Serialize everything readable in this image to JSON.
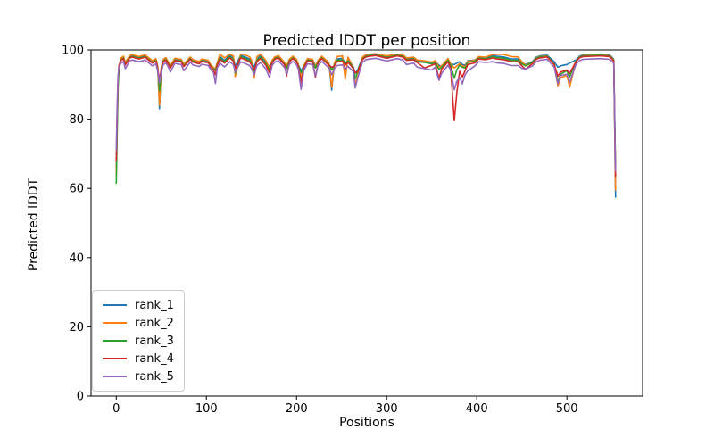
{
  "figure": {
    "background": "#ffffff",
    "frame_color": "#000000",
    "tick_color": "#000000"
  },
  "chart_data": {
    "type": "line",
    "title": "Predicted lDDT per position",
    "xlabel": "Positions",
    "ylabel": "Predicted lDDT",
    "xlim": [
      -28,
      584
    ],
    "ylim": [
      0,
      100
    ],
    "xticks": [
      0,
      100,
      200,
      300,
      400,
      500
    ],
    "yticks": [
      0,
      20,
      40,
      60,
      80,
      100
    ],
    "grid": false,
    "legend_position": "lower left",
    "x": [
      0,
      1,
      2,
      3,
      5,
      8,
      10,
      15,
      18,
      25,
      32,
      40,
      44,
      46,
      48,
      50,
      52,
      55,
      58,
      60,
      65,
      72,
      75,
      82,
      85,
      92,
      95,
      102,
      105,
      108,
      110,
      112,
      115,
      120,
      126,
      130,
      132,
      138,
      142,
      148,
      150,
      153,
      156,
      160,
      166,
      170,
      173,
      176,
      180,
      187,
      189,
      192,
      196,
      200,
      202,
      205,
      208,
      212,
      218,
      221,
      224,
      228,
      236,
      239,
      242,
      245,
      251,
      254,
      257,
      260,
      263,
      265,
      268,
      273,
      277,
      282,
      288,
      300,
      312,
      318,
      322,
      330,
      334,
      342,
      350,
      354,
      358,
      361,
      368,
      371,
      375,
      378,
      381,
      384,
      387,
      390,
      398,
      402,
      410,
      418,
      422,
      430,
      438,
      446,
      450,
      454,
      462,
      466,
      470,
      478,
      486,
      490,
      493,
      500,
      503,
      510,
      514,
      518,
      528,
      538,
      547,
      550,
      552,
      554
    ],
    "series": [
      {
        "name": "rank_1",
        "color": "#1f77b4",
        "y": [
          66,
          80,
          91,
          95,
          97.4,
          98.0,
          96.2,
          98.2,
          98.4,
          97.9,
          98.4,
          96.7,
          97.3,
          95.2,
          83.0,
          95.0,
          97.0,
          97.6,
          96.3,
          95.3,
          97.4,
          97.1,
          95.7,
          97.8,
          97.0,
          96.5,
          97.2,
          96.8,
          95.5,
          94.7,
          94.5,
          96.1,
          98.1,
          97.0,
          98.5,
          97.6,
          95.2,
          98.5,
          98.1,
          97.4,
          96.6,
          95.0,
          97.4,
          98.3,
          96.4,
          95.2,
          96.9,
          97.8,
          98.2,
          96.1,
          95.2,
          97.1,
          98.0,
          97.1,
          95.7,
          94.0,
          95.3,
          97.3,
          97.1,
          95.4,
          96.9,
          98.0,
          96.1,
          88.4,
          95.9,
          97.4,
          97.6,
          96.0,
          97.2,
          96.4,
          95.1,
          93.2,
          94.3,
          97.7,
          98.5,
          98.7,
          98.9,
          98.1,
          98.8,
          98.4,
          97.5,
          97.7,
          96.9,
          96.7,
          96.3,
          96.7,
          95.6,
          95.3,
          97.3,
          95.9,
          95.8,
          96.2,
          96.6,
          95.8,
          95.6,
          96.9,
          97.1,
          97.9,
          97.7,
          98.5,
          98.2,
          98.0,
          97.4,
          97.4,
          96.4,
          95.8,
          96.7,
          97.9,
          98.3,
          98.5,
          96.6,
          95.0,
          95.4,
          95.8,
          96.2,
          97.1,
          98.2,
          98.6,
          98.7,
          98.8,
          98.6,
          97.9,
          97.3,
          57.5
        ]
      },
      {
        "name": "rank_2",
        "color": "#ff7f0e",
        "y": [
          64,
          78,
          90,
          94.5,
          97.6,
          98.2,
          96.4,
          98.4,
          98.6,
          98.1,
          98.6,
          96.9,
          97.5,
          95.4,
          84.0,
          95.2,
          97.2,
          97.8,
          96.5,
          95.5,
          97.6,
          97.3,
          95.9,
          98.0,
          97.2,
          96.7,
          97.4,
          97.0,
          95.7,
          94.9,
          94.7,
          96.3,
          98.8,
          97.7,
          98.8,
          98.3,
          92.3,
          98.8,
          98.7,
          98.0,
          97.2,
          91.8,
          98.0,
          98.8,
          97.0,
          94.8,
          97.1,
          98.0,
          98.4,
          96.3,
          95.4,
          97.3,
          98.2,
          97.3,
          95.9,
          91.8,
          95.5,
          97.5,
          97.3,
          95.2,
          97.1,
          98.2,
          96.3,
          89.2,
          96.1,
          98.1,
          98.3,
          91.6,
          97.9,
          96.5,
          94.9,
          90.0,
          92.5,
          97.9,
          98.7,
          98.8,
          98.9,
          98.3,
          98.8,
          98.6,
          97.7,
          97.9,
          97.1,
          96.9,
          96.5,
          96.9,
          95.0,
          95.5,
          97.5,
          96.1,
          94.8,
          95.4,
          96.0,
          95.4,
          95.2,
          96.7,
          97.0,
          98.1,
          97.9,
          98.8,
          98.7,
          98.7,
          98.1,
          98.0,
          96.6,
          95.6,
          96.5,
          97.7,
          98.1,
          98.3,
          95.7,
          89.6,
          92.0,
          92.6,
          89.2,
          96.5,
          98.0,
          98.4,
          98.5,
          98.6,
          98.4,
          97.7,
          97.1,
          59.5
        ]
      },
      {
        "name": "rank_3",
        "color": "#2ca02c",
        "y": [
          61.5,
          76,
          89,
          94,
          97.1,
          97.7,
          95.9,
          97.9,
          98.1,
          97.6,
          98.1,
          96.4,
          97.0,
          94.9,
          88.2,
          94.7,
          96.7,
          97.3,
          96.0,
          95.0,
          97.1,
          96.8,
          95.4,
          97.5,
          96.7,
          96.2,
          96.9,
          96.5,
          95.2,
          94.4,
          94.1,
          95.8,
          97.7,
          96.6,
          98.1,
          97.2,
          93.3,
          98.1,
          97.7,
          97.0,
          96.2,
          93.6,
          97.0,
          97.9,
          96.0,
          94.2,
          96.6,
          97.5,
          97.9,
          95.8,
          94.6,
          96.8,
          97.7,
          96.8,
          95.4,
          93.4,
          95.0,
          97.0,
          96.8,
          94.8,
          96.6,
          97.7,
          95.8,
          94.2,
          95.6,
          97.0,
          97.2,
          96.2,
          96.8,
          96.0,
          94.8,
          91.6,
          94.0,
          97.4,
          98.2,
          98.4,
          98.6,
          97.8,
          98.5,
          98.1,
          97.2,
          97.4,
          96.6,
          96.4,
          96.0,
          96.4,
          94.4,
          95.0,
          97.0,
          95.6,
          91.8,
          94.4,
          95.6,
          95.0,
          94.8,
          96.4,
          96.8,
          97.6,
          97.4,
          98.1,
          97.8,
          97.6,
          97.0,
          97.0,
          96.0,
          95.4,
          96.4,
          97.6,
          98.0,
          98.2,
          96.0,
          90.6,
          93.0,
          94.0,
          92.2,
          96.8,
          97.9,
          98.3,
          98.4,
          98.5,
          98.3,
          97.6,
          97.0,
          66.0
        ]
      },
      {
        "name": "rank_4",
        "color": "#d62728",
        "y": [
          68,
          82,
          92,
          95.5,
          96.9,
          97.5,
          95.7,
          97.7,
          97.9,
          97.4,
          97.9,
          96.2,
          96.8,
          94.7,
          91.3,
          94.5,
          96.5,
          97.1,
          95.8,
          94.8,
          96.9,
          96.6,
          95.2,
          97.3,
          96.5,
          96.0,
          96.7,
          96.3,
          95.0,
          94.2,
          92.8,
          95.6,
          97.3,
          96.2,
          97.7,
          96.8,
          94.6,
          97.7,
          97.3,
          96.6,
          95.8,
          94.2,
          96.6,
          97.5,
          95.6,
          93.4,
          96.4,
          97.3,
          97.7,
          95.6,
          92.4,
          96.6,
          97.5,
          96.6,
          95.2,
          90.6,
          94.8,
          96.8,
          96.6,
          92.0,
          96.4,
          97.5,
          95.6,
          95.0,
          95.4,
          96.6,
          96.8,
          95.6,
          96.4,
          95.6,
          94.6,
          93.4,
          93.8,
          97.2,
          98.0,
          98.2,
          98.4,
          97.6,
          98.3,
          97.9,
          97.0,
          97.2,
          96.4,
          94.8,
          95.6,
          96.0,
          91.8,
          94.4,
          96.6,
          94.8,
          79.6,
          88.0,
          93.8,
          92.2,
          94.0,
          95.8,
          96.3,
          97.4,
          97.2,
          97.7,
          97.4,
          97.2,
          96.6,
          96.6,
          95.4,
          94.4,
          96.1,
          97.3,
          97.7,
          98.0,
          95.8,
          92.4,
          93.6,
          94.2,
          93.2,
          96.6,
          97.7,
          98.1,
          98.2,
          98.3,
          98.1,
          97.4,
          96.8,
          63.5
        ]
      },
      {
        "name": "rank_5",
        "color": "#9467bd",
        "y": [
          71,
          84,
          92.5,
          95,
          96.1,
          96.7,
          94.6,
          96.9,
          97.1,
          96.6,
          97.1,
          95.4,
          96.0,
          93.9,
          90.5,
          93.7,
          95.7,
          96.3,
          95.0,
          93.6,
          96.1,
          95.8,
          94.0,
          96.5,
          95.7,
          95.2,
          95.9,
          95.5,
          94.2,
          93.4,
          90.3,
          94.8,
          96.2,
          95.1,
          96.6,
          95.7,
          93.6,
          96.6,
          96.2,
          95.5,
          94.7,
          92.8,
          95.5,
          96.4,
          94.5,
          92.0,
          95.6,
          96.5,
          96.9,
          94.8,
          92.9,
          95.8,
          96.7,
          95.8,
          94.4,
          88.6,
          94.0,
          96.0,
          95.8,
          92.4,
          95.6,
          96.7,
          94.8,
          92.8,
          94.6,
          95.5,
          95.7,
          94.4,
          95.3,
          94.5,
          93.8,
          89.0,
          92.0,
          96.4,
          97.2,
          97.4,
          97.6,
          96.8,
          97.5,
          97.1,
          95.8,
          96.2,
          95.0,
          94.6,
          94.2,
          95.0,
          91.2,
          93.2,
          95.6,
          94.2,
          88.5,
          91.0,
          92.0,
          90.2,
          92.8,
          94.0,
          95.4,
          96.6,
          96.4,
          96.6,
          96.3,
          96.1,
          95.5,
          95.5,
          94.7,
          94.4,
          95.4,
          96.6,
          97.0,
          97.3,
          95.0,
          90.2,
          92.6,
          93.0,
          90.6,
          95.8,
          96.9,
          97.3,
          97.4,
          97.5,
          97.3,
          96.7,
          96.1,
          65.0
        ]
      }
    ]
  }
}
